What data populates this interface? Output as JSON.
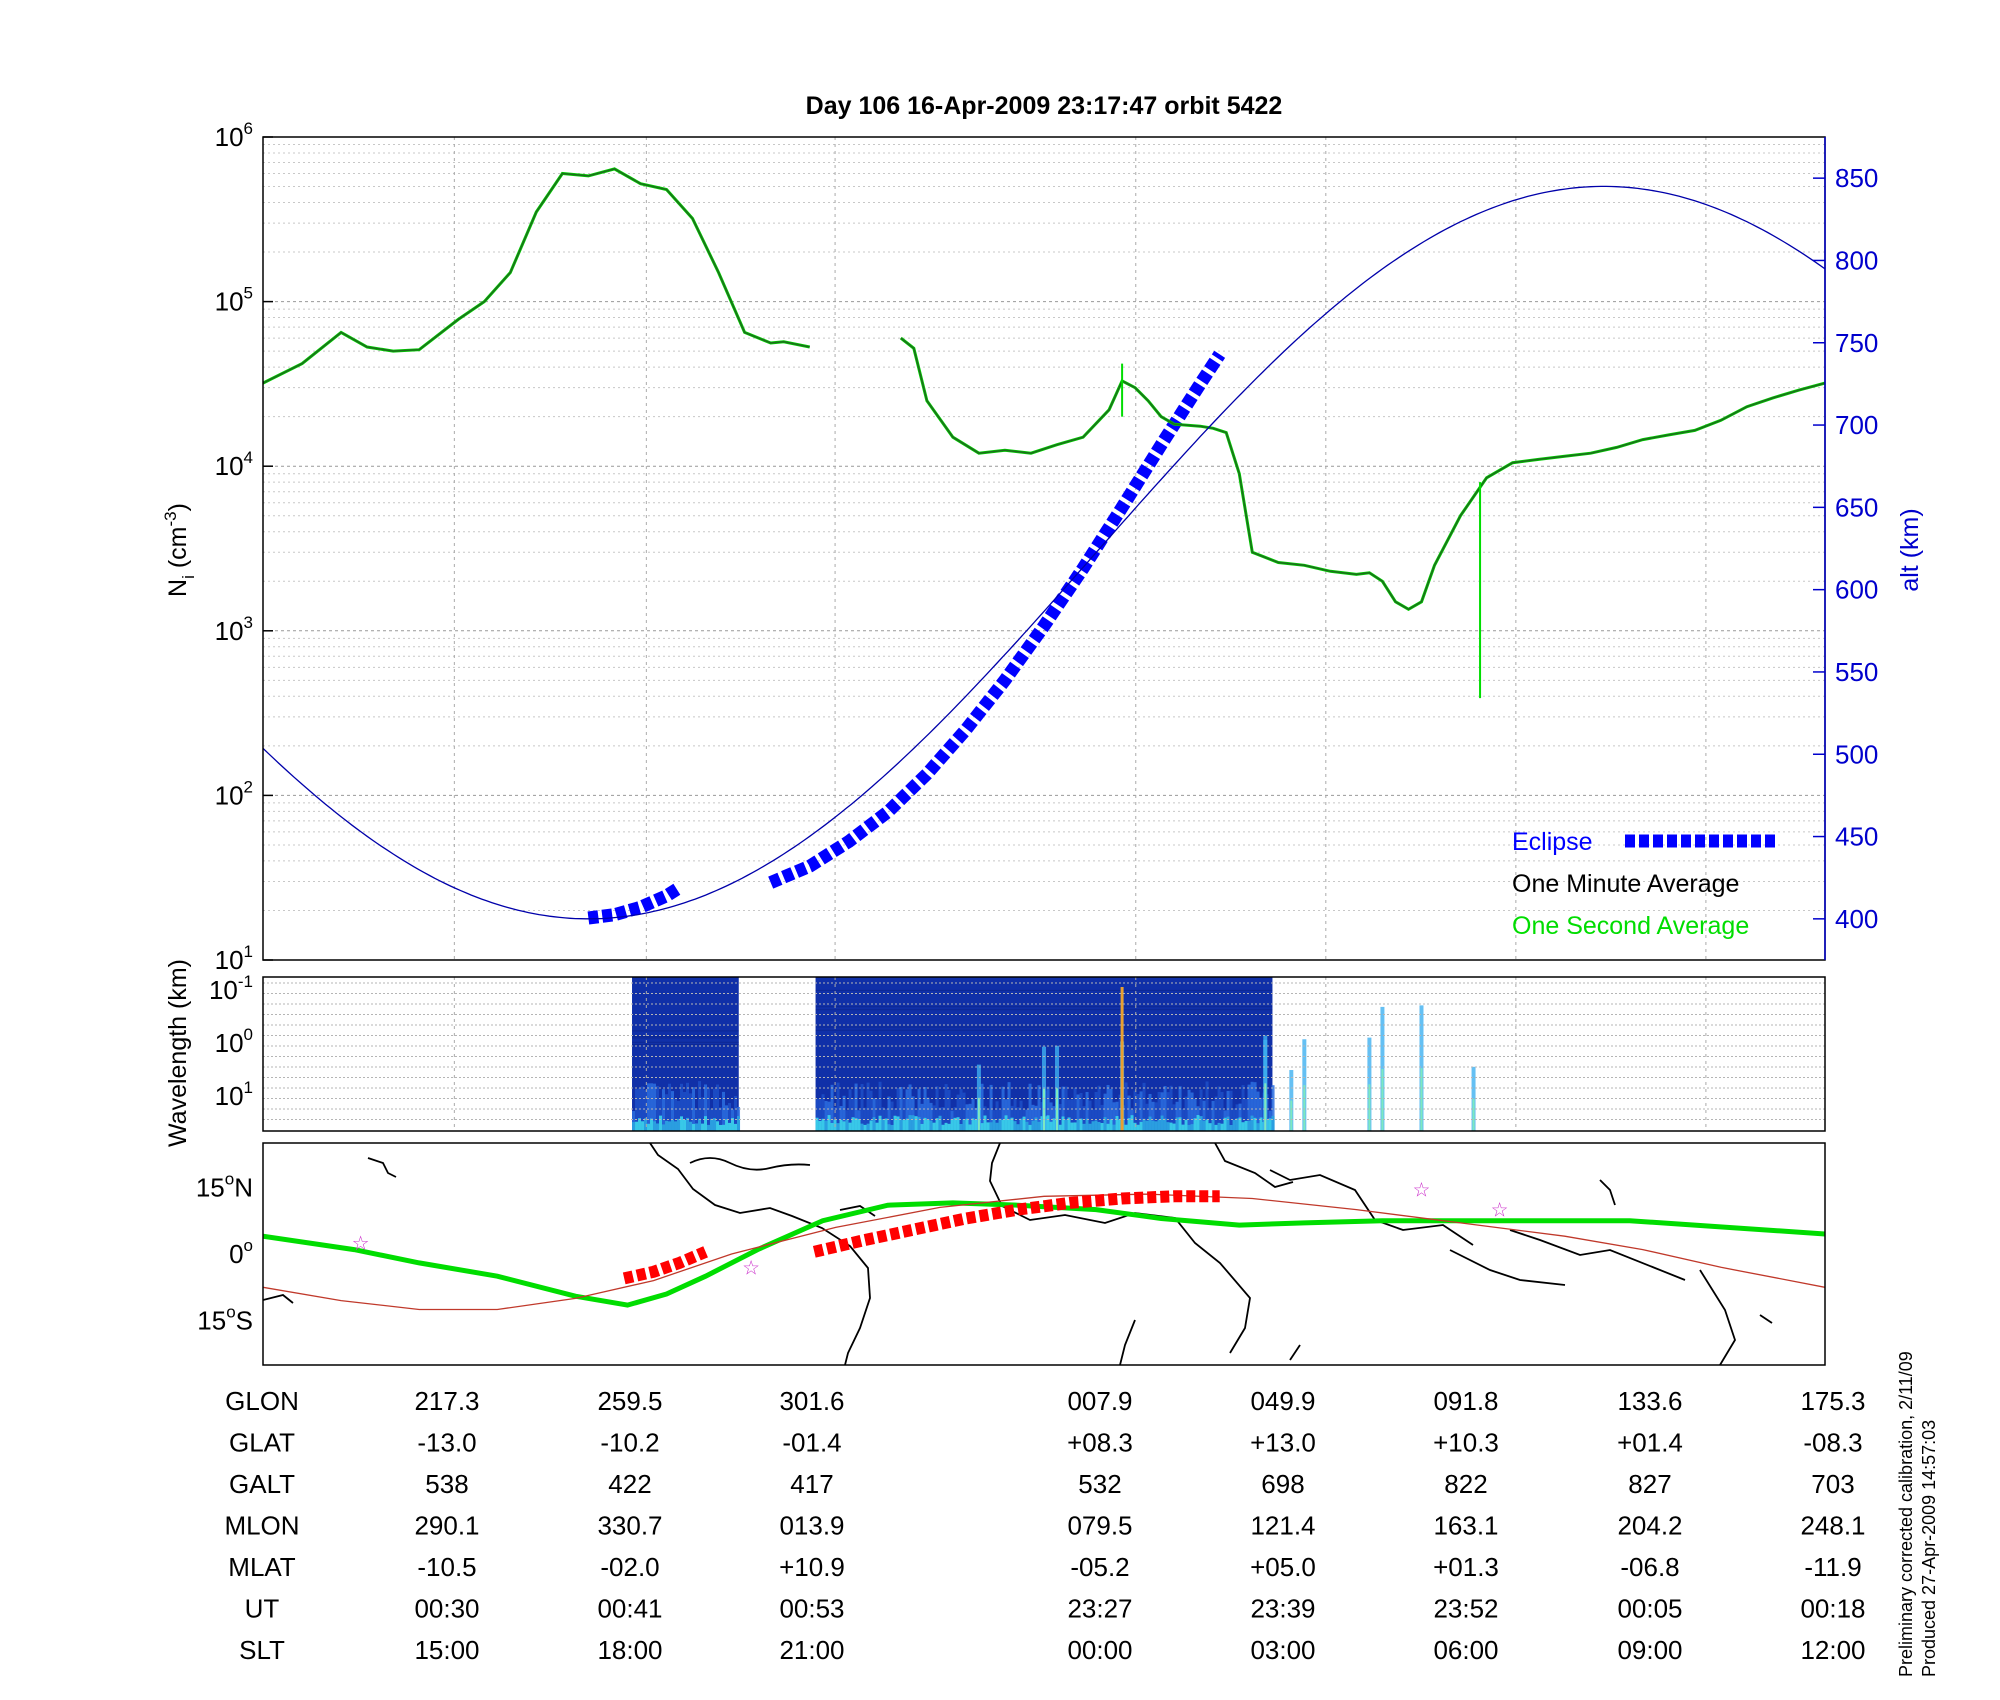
{
  "chart_data": {
    "title": "Day 106  16-Apr-2009 23:17:47   orbit 5422",
    "top_panel": {
      "type": "line",
      "ylabel_left": "N",
      "ylabel_left_sub": "i",
      "ylabel_left_unit": " (cm",
      "ylabel_left_unit_sup": "-3",
      "ylabel_left_unit_close": ")",
      "ylabel_right": "alt (km)",
      "left_axis": {
        "scale": "log",
        "range": [
          10,
          1000000
        ],
        "tick_base": "10",
        "ticks": [
          {
            "exp": "1"
          },
          {
            "exp": "2"
          },
          {
            "exp": "3"
          },
          {
            "exp": "4"
          },
          {
            "exp": "5"
          },
          {
            "exp": "6"
          }
        ]
      },
      "right_axis": {
        "scale": "linear",
        "range": [
          375,
          875
        ],
        "ticks": [
          "400",
          "450",
          "500",
          "550",
          "600",
          "650",
          "700",
          "750",
          "800",
          "850"
        ]
      },
      "legend": {
        "placement": "bottom-right",
        "entries": [
          {
            "label": "Eclipse",
            "color": "#0000ff",
            "style": "thick-dashed"
          },
          {
            "label": "One Minute Average",
            "color": "#000000"
          },
          {
            "label": "One Second Average",
            "color": "#00dd00"
          }
        ]
      },
      "series": [
        {
          "name": "Eclipse",
          "axis": "right",
          "color": "#0000ff",
          "segments": [
            [
              [
                0.25,
                400.5
              ],
              [
                0.27,
                402.5
              ],
              [
                0.29,
                407
              ],
              [
                0.31,
                414
              ],
              [
                0.32,
                419
              ]
            ],
            [
              [
                0.39,
                422
              ],
              [
                0.42,
                432
              ],
              [
                0.45,
                447
              ],
              [
                0.48,
                465
              ],
              [
                0.51,
                488
              ],
              [
                0.54,
                515
              ],
              [
                0.57,
                545
              ],
              [
                0.6,
                578
              ],
              [
                0.63,
                613
              ],
              [
                0.66,
                650
              ],
              [
                0.69,
                688
              ],
              [
                0.72,
                725
              ],
              [
                0.735,
                743
              ]
            ]
          ]
        },
        {
          "name": "One Minute Average",
          "axis": "left",
          "color": "#1d6b1d",
          "segments": [
            [
              [
                0.0,
                32000
              ],
              [
                0.03,
                42000
              ],
              [
                0.06,
                65000
              ],
              [
                0.08,
                53000
              ],
              [
                0.1,
                50000
              ],
              [
                0.12,
                51000
              ],
              [
                0.15,
                78000
              ],
              [
                0.17,
                100000
              ],
              [
                0.19,
                150000
              ],
              [
                0.21,
                350000
              ],
              [
                0.23,
                600000
              ],
              [
                0.25,
                580000
              ],
              [
                0.27,
                640000
              ],
              [
                0.29,
                520000
              ],
              [
                0.31,
                480000
              ],
              [
                0.33,
                320000
              ],
              [
                0.35,
                150000
              ],
              [
                0.37,
                65000
              ],
              [
                0.39,
                56000
              ],
              [
                0.4,
                57000
              ],
              [
                0.42,
                53000
              ]
            ],
            [
              [
                0.49,
                60000
              ],
              [
                0.5,
                52000
              ],
              [
                0.51,
                25000
              ],
              [
                0.53,
                15000
              ],
              [
                0.55,
                12000
              ],
              [
                0.57,
                12500
              ],
              [
                0.59,
                12000
              ],
              [
                0.61,
                13500
              ],
              [
                0.63,
                15000
              ],
              [
                0.65,
                22000
              ],
              [
                0.66,
                33000
              ],
              [
                0.67,
                30000
              ],
              [
                0.68,
                25000
              ],
              [
                0.69,
                20000
              ],
              [
                0.7,
                18000
              ],
              [
                0.72,
                17500
              ],
              [
                0.73,
                17000
              ],
              [
                0.74,
                16000
              ],
              [
                0.75,
                9000
              ],
              [
                0.76,
                3000
              ],
              [
                0.78,
                2600
              ],
              [
                0.8,
                2500
              ],
              [
                0.82,
                2300
              ],
              [
                0.84,
                2200
              ],
              [
                0.85,
                2250
              ],
              [
                0.86,
                2000
              ],
              [
                0.87,
                1500
              ],
              [
                0.88,
                1350
              ],
              [
                0.89,
                1500
              ],
              [
                0.9,
                2500
              ],
              [
                0.92,
                5000
              ],
              [
                0.94,
                8500
              ],
              [
                0.96,
                10500
              ],
              [
                0.98,
                11000
              ],
              [
                1.0,
                11500
              ],
              [
                1.02,
                12000
              ],
              [
                1.04,
                13000
              ],
              [
                1.06,
                14500
              ],
              [
                1.08,
                15500
              ],
              [
                1.1,
                16500
              ],
              [
                1.12,
                19000
              ],
              [
                1.14,
                23000
              ],
              [
                1.16,
                26000
              ],
              [
                1.18,
                29000
              ],
              [
                1.2,
                32000
              ]
            ]
          ]
        },
        {
          "name": "One Second Average",
          "axis": "left",
          "color": "#00dd00",
          "spikes": [
            {
              "x": 0.66,
              "value": 42000
            },
            {
              "x": 0.935,
              "value": 390
            }
          ]
        },
        {
          "name": "altitude",
          "axis": "right",
          "color": "#0000aa",
          "model": "sinusoid",
          "period": 1.56,
          "mean": 622.5,
          "amplitude": 222.5,
          "x_min_alt": 0.25,
          "x_range": [
            0.0,
            1.2
          ]
        }
      ]
    },
    "spectrogram_panel": {
      "type": "heatmap",
      "ylabel": "Wavelength (km)",
      "scale": "log",
      "tick_base": "10",
      "ticks": [
        {
          "exp": "-1"
        },
        {
          "exp": "0"
        },
        {
          "exp": "1"
        }
      ],
      "data_ranges": [
        [
          0.2835,
          0.3655
        ],
        [
          0.4245,
          0.7755
        ]
      ],
      "peak_columns": [
        0.55,
        0.6,
        0.66,
        0.61,
        0.77,
        0.79,
        0.8,
        0.85,
        0.86,
        0.89,
        0.93,
        0.77
      ]
    },
    "map_panel": {
      "type": "line",
      "yticks": [
        {
          "value": 15,
          "label": "15",
          "sup": "o",
          "suffix": "N"
        },
        {
          "value": 0,
          "label": "0",
          "sup": "o",
          "suffix": ""
        },
        {
          "value": -15,
          "label": "15",
          "sup": "o",
          "suffix": "S"
        }
      ],
      "lat_range": [
        -25,
        25
      ],
      "series": [
        {
          "name": "orbit track",
          "color": "#00dd00",
          "points": [
            [
              0.0,
              4
            ],
            [
              0.07,
              1
            ],
            [
              0.12,
              -2
            ],
            [
              0.18,
              -5
            ],
            [
              0.24,
              -9.5
            ],
            [
              0.28,
              -11.5
            ],
            [
              0.31,
              -9
            ],
            [
              0.34,
              -5
            ],
            [
              0.38,
              1
            ],
            [
              0.43,
              7.5
            ],
            [
              0.48,
              11
            ],
            [
              0.53,
              11.5
            ],
            [
              0.58,
              11
            ],
            [
              0.64,
              10
            ],
            [
              0.69,
              8
            ],
            [
              0.75,
              6.5
            ],
            [
              0.8,
              7
            ],
            [
              0.86,
              7.5
            ],
            [
              0.93,
              7.5
            ],
            [
              0.98,
              7.5
            ],
            [
              1.05,
              7.5
            ],
            [
              1.1,
              6.5
            ],
            [
              1.2,
              4.5
            ]
          ]
        },
        {
          "name": "magnetic equator",
          "color": "#c0392b",
          "points": [
            [
              0.0,
              -7.5
            ],
            [
              0.06,
              -10.5
            ],
            [
              0.12,
              -12.5
            ],
            [
              0.18,
              -12.5
            ],
            [
              0.24,
              -10
            ],
            [
              0.3,
              -6
            ],
            [
              0.36,
              0
            ],
            [
              0.44,
              6
            ],
            [
              0.52,
              10.5
            ],
            [
              0.6,
              13
            ],
            [
              0.68,
              13.5
            ],
            [
              0.76,
              12.5
            ],
            [
              0.84,
              10
            ],
            [
              0.92,
              7
            ],
            [
              1.0,
              4
            ],
            [
              1.06,
              1
            ],
            [
              1.12,
              -3
            ],
            [
              1.2,
              -7.5
            ]
          ]
        },
        {
          "name": "eclipse track",
          "color": "#ff0000",
          "segments": [
            [
              [
                0.2775,
                -5.5
              ],
              [
                0.3,
                -4
              ],
              [
                0.32,
                -2
              ],
              [
                0.34,
                0.5
              ]
            ],
            [
              [
                0.4235,
                0.5
              ],
              [
                0.46,
                3
              ],
              [
                0.5,
                5.5
              ],
              [
                0.54,
                8
              ],
              [
                0.58,
                10
              ],
              [
                0.62,
                11.5
              ],
              [
                0.66,
                12.5
              ],
              [
                0.7,
                13
              ],
              [
                0.735,
                13
              ]
            ]
          ]
        }
      ],
      "stars": [
        [
          0.075,
          2.5
        ],
        [
          0.375,
          -3
        ],
        [
          0.89,
          14.5
        ],
        [
          0.95,
          10
        ]
      ]
    },
    "table": {
      "rows": [
        {
          "label": "GLON",
          "values": [
            "217.3",
            "259.5",
            "301.6",
            "007.9",
            "049.9",
            "091.8",
            "133.6",
            "175.3"
          ]
        },
        {
          "label": "GLAT",
          "values": [
            "-13.0",
            "-10.2",
            "-01.4",
            "+08.3",
            "+13.0",
            "+10.3",
            "+01.4",
            "-08.3"
          ]
        },
        {
          "label": "GALT",
          "values": [
            "538",
            "422",
            "417",
            "532",
            "698",
            "822",
            "827",
            "703"
          ]
        },
        {
          "label": "MLON",
          "values": [
            "290.1",
            "330.7",
            "013.9",
            "079.5",
            "121.4",
            "163.1",
            "204.2",
            "248.1"
          ]
        },
        {
          "label": "MLAT",
          "values": [
            "-10.5",
            "-02.0",
            "+10.9",
            "-05.2",
            "+05.0",
            "+01.3",
            "-06.8",
            "-11.9"
          ]
        },
        {
          "label": "UT",
          "values": [
            "00:30",
            "00:41",
            "00:53",
            "23:27",
            "23:39",
            "23:52",
            "00:05",
            "00:18"
          ]
        },
        {
          "label": "SLT",
          "values": [
            "15:00",
            "18:00",
            "21:00",
            "00:00",
            "03:00",
            "06:00",
            "09:00",
            "12:00"
          ]
        }
      ]
    },
    "footnotes": [
      "Preliminary corrected calibration, 2/11/09",
      "Produced 27-Apr-2009 14:57:03"
    ]
  }
}
